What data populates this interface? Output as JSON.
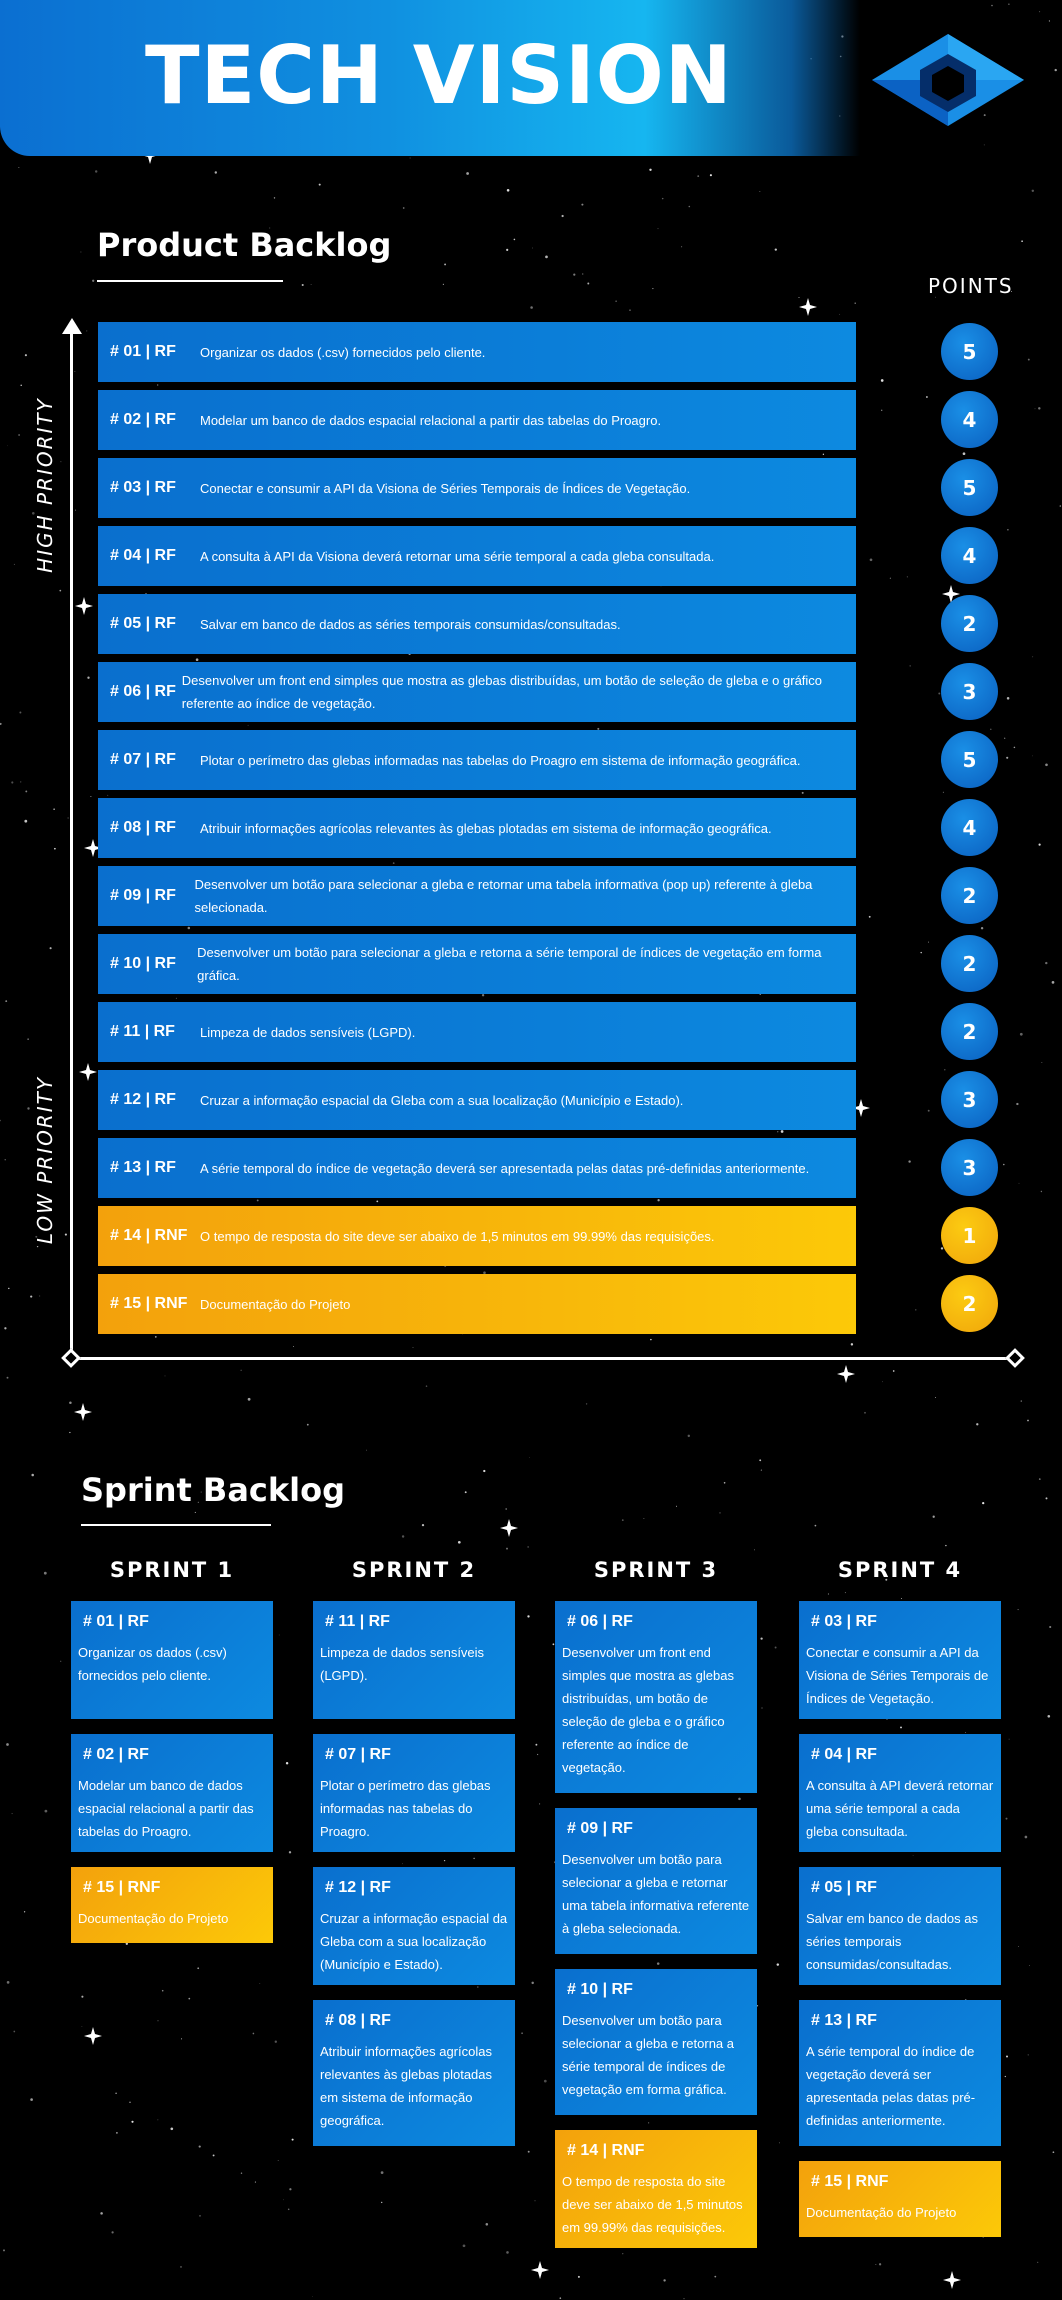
{
  "header": {
    "title": "TECH VISION",
    "logo_icon": "hexagon-cube-logo-icon"
  },
  "product_backlog": {
    "title": "Product Backlog",
    "points_label": "POINTS",
    "high_priority_label": "HIGH PRIORITY",
    "low_priority_label": "LOW PRIORITY",
    "items": [
      {
        "id": "# 01 | RF",
        "text": "Organizar os dados (.csv) fornecidos pelo cliente.",
        "points": "5",
        "color": "blue"
      },
      {
        "id": "# 02 | RF",
        "text": "Modelar um banco de dados espacial relacional a partir das tabelas do Proagro.",
        "points": "4",
        "color": "blue"
      },
      {
        "id": "# 03 | RF",
        "text": "Conectar e consumir a API da Visiona de Séries Temporais de Índices de Vegetação.",
        "points": "5",
        "color": "blue"
      },
      {
        "id": "# 04 | RF",
        "text": "A consulta à API da Visiona deverá retornar uma série temporal a cada gleba consultada.",
        "points": "4",
        "color": "blue"
      },
      {
        "id": "# 05 | RF",
        "text": "Salvar em banco de dados as séries temporais consumidas/consultadas.",
        "points": "2",
        "color": "blue"
      },
      {
        "id": "# 06 | RF",
        "text": "Desenvolver um front end simples que mostra as glebas distribuídas, um botão de seleção de gleba e o gráfico referente ao índice de vegetação.",
        "points": "3",
        "color": "blue"
      },
      {
        "id": "# 07 | RF",
        "text": "Plotar o perímetro das glebas informadas nas tabelas do Proagro em sistema de informação geográfica.",
        "points": "5",
        "color": "blue"
      },
      {
        "id": "# 08 | RF",
        "text": "Atribuir informações agrícolas relevantes às glebas plotadas em sistema de informação geográfica.",
        "points": "4",
        "color": "blue"
      },
      {
        "id": "# 09 | RF",
        "text": "Desenvolver um botão para selecionar a gleba e retornar uma tabela informativa (pop up) referente à gleba selecionada.",
        "points": "2",
        "color": "blue"
      },
      {
        "id": "# 10 | RF",
        "text": "Desenvolver um botão para selecionar a gleba e retorna a série temporal de índices de vegetação em forma gráfica.",
        "points": "2",
        "color": "blue"
      },
      {
        "id": "# 11 | RF",
        "text": "Limpeza de dados sensíveis (LGPD).",
        "points": "2",
        "color": "blue"
      },
      {
        "id": "# 12 | RF",
        "text": "Cruzar a informação espacial da Gleba com a sua localização (Município e Estado).",
        "points": "3",
        "color": "blue"
      },
      {
        "id": "# 13 | RF",
        "text": "A série temporal do índice de vegetação deverá ser apresentada pelas datas pré-definidas anteriormente.",
        "points": "3",
        "color": "blue"
      },
      {
        "id": "# 14 | RNF",
        "text": "O tempo de resposta do site deve ser abaixo de 1,5 minutos em 99.99% das requisições.",
        "points": "1",
        "color": "gold"
      },
      {
        "id": "# 15 | RNF",
        "text": "Documentação do Projeto",
        "points": "2",
        "color": "gold"
      }
    ]
  },
  "sprint_backlog": {
    "title": "Sprint Backlog",
    "sprints": [
      {
        "label": "SPRINT 1",
        "cards": [
          {
            "id": "# 01 | RF",
            "text": "Organizar os dados (.csv) fornecidos pelo cliente.",
            "color": "blue"
          },
          {
            "id": "# 02 | RF",
            "text": "Modelar um banco de dados espacial relacional a partir das tabelas do Proagro.",
            "color": "blue"
          },
          {
            "id": "# 15 | RNF",
            "text": "Documentação do Projeto",
            "color": "gold"
          }
        ]
      },
      {
        "label": "SPRINT 2",
        "cards": [
          {
            "id": "# 11 | RF",
            "text": "Limpeza de dados sensíveis (LGPD).",
            "color": "blue"
          },
          {
            "id": "# 07 | RF",
            "text": "Plotar o perímetro das glebas informadas nas tabelas do Proagro.",
            "color": "blue"
          },
          {
            "id": "# 12 | RF",
            "text": "Cruzar a informação espacial da Gleba com a sua localização (Município e Estado).",
            "color": "blue"
          },
          {
            "id": "# 08 | RF",
            "text": "Atribuir informações agrícolas relevantes às glebas plotadas em sistema de informação geográfica.",
            "color": "blue"
          }
        ]
      },
      {
        "label": "SPRINT 3",
        "cards": [
          {
            "id": "# 06 | RF",
            "text": "Desenvolver um front end simples que mostra as glebas distribuídas, um botão de seleção de gleba e o gráfico referente ao índice de vegetação.",
            "color": "blue"
          },
          {
            "id": "# 09 | RF",
            "text": "Desenvolver um botão para selecionar a gleba e retornar uma tabela informativa referente à gleba selecionada.",
            "color": "blue"
          },
          {
            "id": "# 10 | RF",
            "text": "Desenvolver um botão para selecionar a gleba e retorna a série temporal de índices de vegetação em forma gráfica.",
            "color": "blue"
          },
          {
            "id": "# 14 | RNF",
            "text": "O tempo de resposta do site deve ser abaixo de 1,5 minutos em 99.99% das requisições.",
            "color": "gold"
          }
        ]
      },
      {
        "label": "SPRINT 4",
        "cards": [
          {
            "id": "# 03 | RF",
            "text": "Conectar e consumir a API da Visiona de Séries Temporais de Índices de Vegetação.",
            "color": "blue"
          },
          {
            "id": "# 04 | RF",
            "text": "A consulta à API deverá retornar uma série temporal a cada gleba consultada.",
            "color": "blue"
          },
          {
            "id": "# 05 | RF",
            "text": "Salvar em banco de dados as séries temporais consumidas/consultadas.",
            "color": "blue"
          },
          {
            "id": "# 13 | RF",
            "text": "A série temporal do índice de vegetação deverá ser apresentada pelas datas pré-definidas anteriormente.",
            "color": "blue"
          },
          {
            "id": "# 15 | RNF",
            "text": "Documentação do Projeto",
            "color": "gold"
          }
        ]
      }
    ]
  }
}
